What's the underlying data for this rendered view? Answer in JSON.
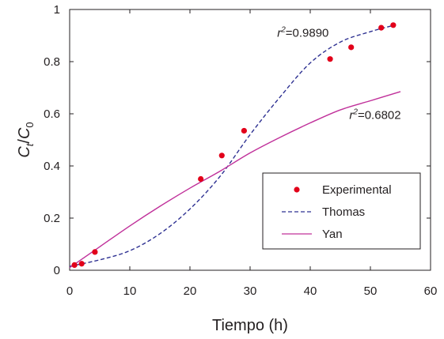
{
  "chart_data": {
    "type": "line",
    "xlabel": "Tiempo (h)",
    "ylabel_main": "C",
    "ylabel_sub1": "t",
    "ylabel_slash": "/",
    "ylabel_sub2": "0",
    "xlim": [
      0,
      60
    ],
    "ylim": [
      0,
      1
    ],
    "xticks": [
      0,
      10,
      20,
      30,
      40,
      50,
      60
    ],
    "yticks": [
      0,
      0.2,
      0.4,
      0.6,
      0.8,
      1
    ],
    "x_tick_labels": [
      "0",
      "10",
      "20",
      "30",
      "40",
      "50",
      "60"
    ],
    "y_tick_labels": [
      "0",
      "0.2",
      "0.4",
      "0.6",
      "0.8",
      "1"
    ],
    "grid": false,
    "legend_position": "lower-right",
    "series": [
      {
        "name": "Experimental",
        "kind": "scatter",
        "color": "#e2001a",
        "x": [
          0.8,
          2,
          4.2,
          21.8,
          25.3,
          29,
          43.3,
          46.8,
          51.8,
          53.8
        ],
        "y": [
          0.02,
          0.025,
          0.07,
          0.35,
          0.44,
          0.535,
          0.81,
          0.855,
          0.93,
          0.94
        ]
      },
      {
        "name": "Thomas",
        "kind": "line",
        "style": "dashed",
        "color": "#2e3192",
        "r2": "0.9890",
        "x": [
          0,
          5,
          10,
          15,
          20,
          25,
          30,
          35,
          40,
          45,
          50,
          54
        ],
        "y": [
          0.015,
          0.04,
          0.075,
          0.14,
          0.235,
          0.36,
          0.52,
          0.665,
          0.795,
          0.875,
          0.915,
          0.94
        ]
      },
      {
        "name": "Yan",
        "kind": "line",
        "style": "solid",
        "color": "#c0309a",
        "r2": "0.6802",
        "x": [
          0,
          5,
          10,
          15,
          20,
          25,
          30,
          35,
          40,
          45,
          50,
          55
        ],
        "y": [
          0.01,
          0.09,
          0.17,
          0.245,
          0.315,
          0.38,
          0.45,
          0.51,
          0.565,
          0.615,
          0.65,
          0.685
        ]
      }
    ],
    "annotations": [
      {
        "label": "r",
        "superscript": "2",
        "value": "=0.9890",
        "at_x": 34.5,
        "at_y": 0.895
      },
      {
        "label": "r",
        "superscript": "2",
        "value": "=0.6802",
        "at_x": 46.5,
        "at_y": 0.58
      }
    ]
  }
}
